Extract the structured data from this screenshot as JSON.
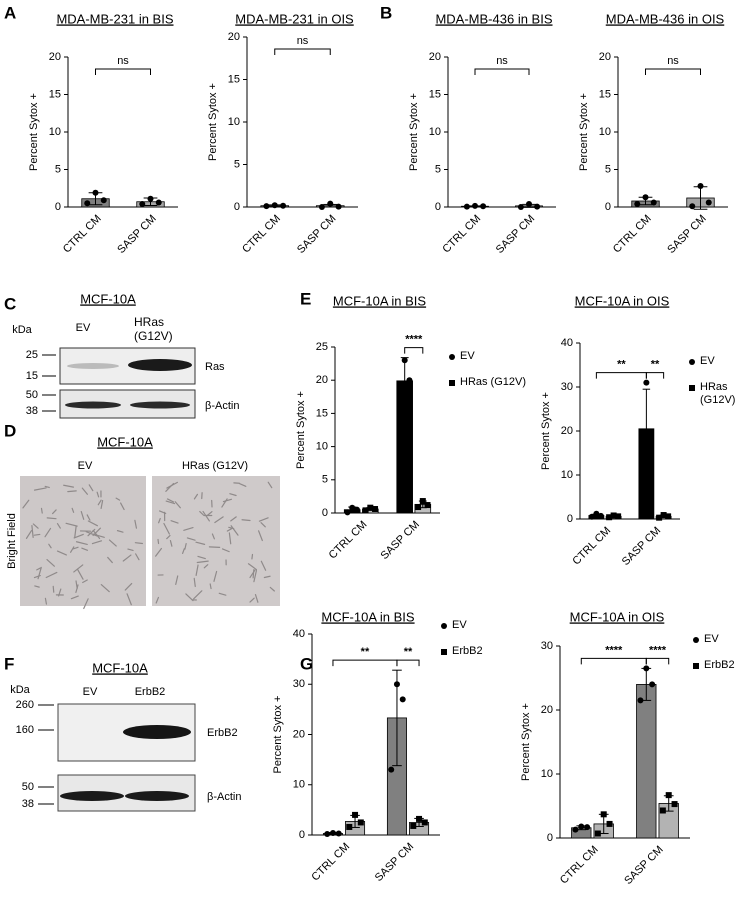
{
  "panel_labels": [
    "A",
    "B",
    "C",
    "D",
    "E",
    "F",
    "G"
  ],
  "blot_c": {
    "title": "MCF-10A",
    "unit": "kDa",
    "lanes": [
      "EV",
      "HRas (G12V)"
    ],
    "markers": [
      25,
      15,
      50,
      38
    ],
    "bands": [
      "Ras",
      "β-Actin"
    ]
  },
  "image_d": {
    "title": "MCF-10A",
    "panels": [
      "EV",
      "HRas (G12V)"
    ],
    "ylabel": "Bright Field"
  },
  "blot_f": {
    "title": "MCF-10A",
    "unit": "kDa",
    "lanes": [
      "EV",
      "ErbB2"
    ],
    "markers": [
      260,
      160,
      50,
      38
    ],
    "bands": [
      "ErbB2",
      "β-Actin"
    ]
  },
  "chart_data": [
    {
      "type": "bar",
      "title": "MDA-MB-231 in BIS",
      "ylabel": "Percent Sytox +",
      "categories": [
        "CTRL CM",
        "SASP CM"
      ],
      "values": [
        1.1,
        0.7
      ],
      "errors": [
        0.8,
        0.5
      ],
      "points": [
        [
          0.5,
          1.9,
          0.9
        ],
        [
          0.4,
          1.1,
          0.6
        ]
      ],
      "colors": [
        "#7f7f7f",
        "#a6a6a6"
      ],
      "ylim": [
        0,
        20
      ],
      "yticks": [
        0,
        5,
        10,
        15,
        20
      ],
      "annotations": [
        "ns"
      ]
    },
    {
      "type": "bar",
      "title": "MDA-MB-231 in OIS",
      "ylabel": "Percent Sytox +",
      "categories": [
        "CTRL CM",
        "SASP CM"
      ],
      "values": [
        0.15,
        0.15
      ],
      "errors": [
        0.1,
        0.15
      ],
      "points": [
        [
          0.1,
          0.2,
          0.15
        ],
        [
          0.0,
          0.4,
          0.05
        ]
      ],
      "colors": [
        "#7f7f7f",
        "#a6a6a6"
      ],
      "ylim": [
        0,
        20
      ],
      "yticks": [
        0,
        5,
        10,
        15,
        20
      ],
      "annotations": [
        "ns"
      ]
    },
    {
      "type": "bar",
      "title": "MDA-MB-436 in BIS",
      "ylabel": "Percent Sytox +",
      "categories": [
        "CTRL CM",
        "SASP CM"
      ],
      "values": [
        0.1,
        0.15
      ],
      "errors": [
        0.05,
        0.2
      ],
      "points": [
        [
          0.05,
          0.15,
          0.1
        ],
        [
          0.0,
          0.4,
          0.05
        ]
      ],
      "colors": [
        "#7f7f7f",
        "#a6a6a6"
      ],
      "ylim": [
        0,
        20
      ],
      "yticks": [
        0,
        5,
        10,
        15,
        20
      ],
      "annotations": [
        "ns"
      ]
    },
    {
      "type": "bar",
      "title": "MDA-MB-436 in OIS",
      "ylabel": "Percent Sytox +",
      "categories": [
        "CTRL CM",
        "SASP CM"
      ],
      "values": [
        0.8,
        1.2
      ],
      "errors": [
        0.5,
        1.5
      ],
      "points": [
        [
          0.4,
          1.3,
          0.6
        ],
        [
          0.1,
          2.8,
          0.6
        ]
      ],
      "colors": [
        "#7f7f7f",
        "#a6a6a6"
      ],
      "ylim": [
        0,
        20
      ],
      "yticks": [
        0,
        5,
        10,
        15,
        20
      ],
      "annotations": [
        "ns"
      ]
    },
    {
      "type": "grouped_bar",
      "title": "MCF-10A in BIS",
      "ylabel": "Percent Sytox +",
      "categories": [
        "CTRL CM",
        "SASP CM"
      ],
      "series": [
        {
          "name": "EV",
          "color": "#000000",
          "marker": "circle",
          "values": [
            0.5,
            19.9
          ],
          "errors": [
            0.4,
            3.5
          ],
          "points": [
            [
              0.1,
              0.8,
              0.5
            ],
            [
              17,
              23,
              20
            ]
          ]
        },
        {
          "name": "HRas (G12V)",
          "color": "#bfbfbf",
          "marker": "square",
          "values": [
            0.6,
            1.3
          ],
          "errors": [
            0.2,
            0.5
          ],
          "points": [
            [
              0.4,
              0.8,
              0.6
            ],
            [
              0.9,
              1.8,
              1.2
            ]
          ]
        }
      ],
      "ylim": [
        0,
        25
      ],
      "yticks": [
        0,
        5,
        10,
        15,
        20,
        25
      ],
      "annotations": [
        "****"
      ]
    },
    {
      "type": "grouped_bar",
      "title": "MCF-10A in OIS",
      "ylabel": "Percent Sytox +",
      "categories": [
        "CTRL CM",
        "SASP CM"
      ],
      "series": [
        {
          "name": "EV",
          "color": "#000000",
          "marker": "circle",
          "values": [
            0.8,
            20.5
          ],
          "errors": [
            0.3,
            9
          ],
          "points": [
            [
              0.5,
              1.2,
              0.7
            ],
            [
              11,
              31,
              19
            ]
          ]
        },
        {
          "name": "HRas (G12V)",
          "color": "#bfbfbf",
          "marker": "square",
          "values": [
            0.6,
            0.6
          ],
          "errors": [
            0.2,
            0.3
          ],
          "points": [
            [
              0.4,
              0.8,
              0.6
            ],
            [
              0.3,
              0.9,
              0.6
            ]
          ]
        }
      ],
      "ylim": [
        0,
        40
      ],
      "yticks": [
        0,
        10,
        20,
        30,
        40
      ],
      "annotations": [
        "**",
        "**"
      ]
    },
    {
      "type": "grouped_bar",
      "title": "MCF-10A in BIS",
      "ylabel": "Percent Sytox +",
      "categories": [
        "CTRL CM",
        "SASP CM"
      ],
      "series": [
        {
          "name": "EV",
          "color": "#808080",
          "marker": "circle",
          "values": [
            0.3,
            23.3
          ],
          "errors": [
            0.2,
            9.5
          ],
          "points": [
            [
              0.2,
              0.4,
              0.3
            ],
            [
              13,
              30,
              27
            ]
          ]
        },
        {
          "name": "ErbB2",
          "color": "#b3b3b3",
          "marker": "square",
          "values": [
            2.7,
            2.5
          ],
          "errors": [
            1.2,
            0.8
          ],
          "points": [
            [
              1.6,
              4,
              2.5
            ],
            [
              1.8,
              3.2,
              2.5
            ]
          ]
        }
      ],
      "ylim": [
        0,
        40
      ],
      "yticks": [
        0,
        10,
        20,
        30,
        40
      ],
      "annotations": [
        "**",
        "**"
      ]
    },
    {
      "type": "grouped_bar",
      "title": "MCF-10A in OIS",
      "ylabel": "Percent Sytox +",
      "categories": [
        "CTRL CM",
        "SASP CM"
      ],
      "series": [
        {
          "name": "EV",
          "color": "#808080",
          "marker": "circle",
          "values": [
            1.6,
            24
          ],
          "errors": [
            0.3,
            2.5
          ],
          "points": [
            [
              1.3,
              1.8,
              1.7
            ],
            [
              21.5,
              26.5,
              24
            ]
          ]
        },
        {
          "name": "ErbB2",
          "color": "#b3b3b3",
          "marker": "square",
          "values": [
            2.2,
            5.4
          ],
          "errors": [
            1.5,
            1.2
          ],
          "points": [
            [
              0.7,
              3.7,
              2.2
            ],
            [
              4.3,
              6.7,
              5.3
            ]
          ]
        }
      ],
      "ylim": [
        0,
        30
      ],
      "yticks": [
        0,
        10,
        20,
        30
      ],
      "annotations": [
        "****",
        "****"
      ]
    }
  ]
}
